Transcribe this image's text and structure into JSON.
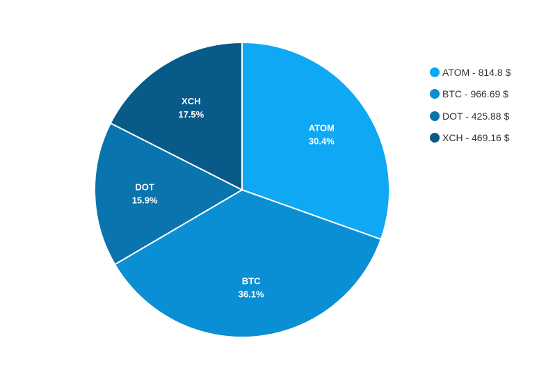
{
  "chart_data": {
    "type": "pie",
    "slices": [
      {
        "label": "ATOM",
        "value": 814.8,
        "percent_label": "30.4%",
        "legend_text": "ATOM - 814.8 $",
        "color": "#0ea8f5"
      },
      {
        "label": "BTC",
        "value": 966.69,
        "percent_label": "36.1%",
        "legend_text": "BTC - 966.69 $",
        "color": "#0b8fd4"
      },
      {
        "label": "DOT",
        "value": 425.88,
        "percent_label": "15.9%",
        "legend_text": "DOT - 425.88 $",
        "color": "#0a74ae"
      },
      {
        "label": "XCH",
        "value": 469.16,
        "percent_label": "17.5%",
        "legend_text": "XCH - 469.16 $",
        "color": "#085a88"
      }
    ],
    "legend_position": "right"
  }
}
